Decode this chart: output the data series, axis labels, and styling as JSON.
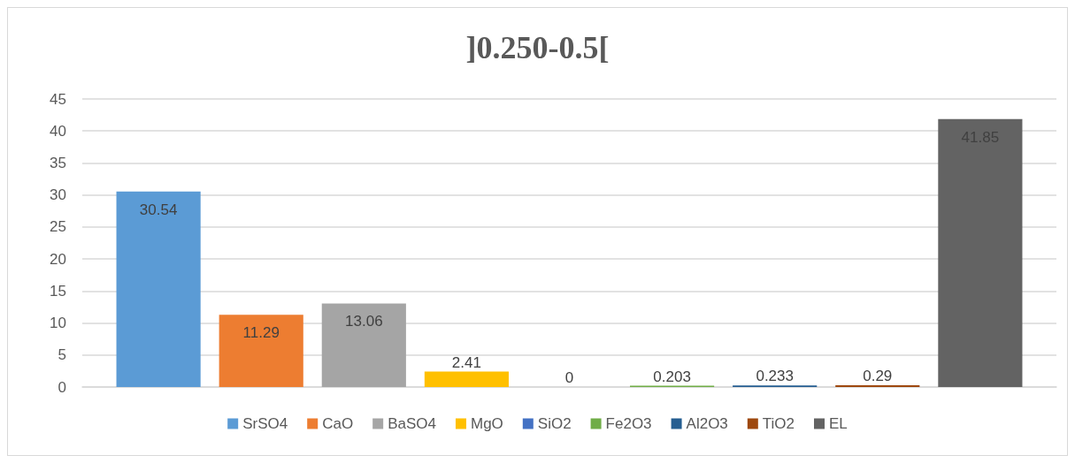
{
  "chart_data": {
    "type": "bar",
    "title": "]0.250-0.5[",
    "categories": [
      null
    ],
    "series": [
      {
        "name": "SrSO4",
        "color": "#5b9bd5",
        "values": [
          30.54
        ]
      },
      {
        "name": "CaO",
        "color": "#ed7d31",
        "values": [
          11.29
        ]
      },
      {
        "name": "BaSO4",
        "color": "#a5a5a5",
        "values": [
          13.06
        ]
      },
      {
        "name": "MgO",
        "color": "#ffc000",
        "values": [
          2.41
        ]
      },
      {
        "name": "SiO2",
        "color": "#4472c4",
        "values": [
          0
        ]
      },
      {
        "name": "Fe2O3",
        "color": "#70ad47",
        "values": [
          0.203
        ]
      },
      {
        "name": "Al2O3",
        "color": "#255e91",
        "values": [
          0.233
        ]
      },
      {
        "name": "TiO2",
        "color": "#9e480e",
        "values": [
          0.29
        ]
      },
      {
        "name": "EL",
        "color": "#636363",
        "values": [
          41.85
        ]
      }
    ],
    "ylim": [
      0,
      45
    ],
    "yticks": [
      0,
      5,
      10,
      15,
      20,
      25,
      30,
      35,
      40,
      45
    ],
    "grid": "y",
    "legend": "bottom",
    "data_labels": true
  }
}
